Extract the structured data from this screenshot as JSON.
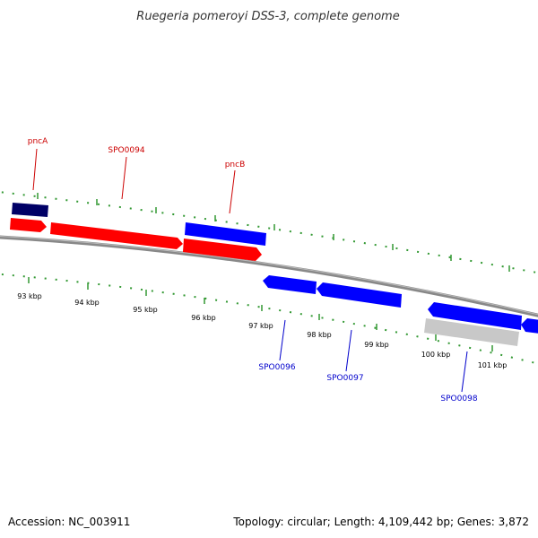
{
  "header": {
    "title": "Ruegeria pomeroyi DSS-3, complete genome"
  },
  "footer": {
    "accession": "Accession: NC_003911",
    "summary": "Topology: circular; Length: 4,109,442 bp; Genes: 3,872"
  },
  "colors": {
    "forward_gene": "#ff0000",
    "reverse_gene": "#0000ff",
    "dark_feature": "#000066",
    "gray_feature": "#c8c8c8",
    "backbone": "#888888",
    "tick": "#339933",
    "forward_label": "#cc0000",
    "reverse_label": "#0000cc"
  },
  "ticks": [
    {
      "label": "93 kbp"
    },
    {
      "label": "94 kbp"
    },
    {
      "label": "95 kbp"
    },
    {
      "label": "96 kbp"
    },
    {
      "label": "97 kbp"
    },
    {
      "label": "98 kbp"
    },
    {
      "label": "99 kbp"
    },
    {
      "label": "100 kbp"
    },
    {
      "label": "101 kbp"
    }
  ],
  "genes_forward": [
    {
      "name": "pncA"
    },
    {
      "name": "SPO0094"
    },
    {
      "name": "pncB"
    }
  ],
  "genes_reverse": [
    {
      "name": "SPO0096"
    },
    {
      "name": "SPO0097"
    },
    {
      "name": "SPO0098"
    }
  ]
}
